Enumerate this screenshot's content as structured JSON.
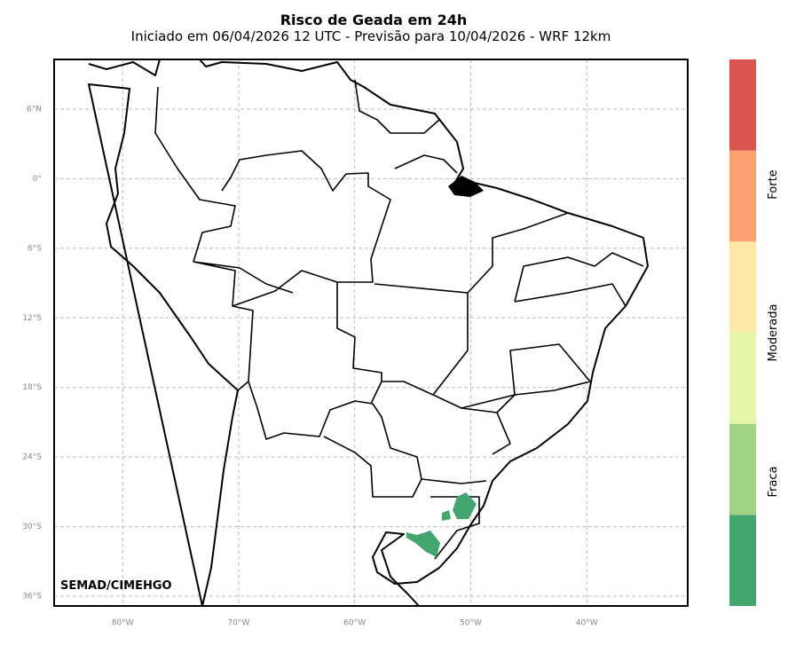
{
  "header": {
    "title": "Risco de Geada em 24h",
    "subtitle": "Iniciado em 06/04/2026 12 UTC - Previsão para 10/04/2026 - WRF 12km"
  },
  "map": {
    "xlim": [
      -85.9,
      -31.3
    ],
    "ylim": [
      -36.84,
      10.28
    ],
    "grid": true,
    "xticks": [
      {
        "value": -80,
        "label": "80°W"
      },
      {
        "value": -70,
        "label": "70°W"
      },
      {
        "value": -60,
        "label": "60°W"
      },
      {
        "value": -50,
        "label": "50°W"
      },
      {
        "value": -40,
        "label": "40°W"
      }
    ],
    "yticks": [
      {
        "value": 6,
        "label": "6°N"
      },
      {
        "value": 0,
        "label": "0°"
      },
      {
        "value": -6,
        "label": "6°S"
      },
      {
        "value": -12,
        "label": "12°S"
      },
      {
        "value": -18,
        "label": "18°S"
      },
      {
        "value": -24,
        "label": "24°S"
      },
      {
        "value": -30,
        "label": "30°S"
      },
      {
        "value": -36,
        "label": "36°S"
      }
    ],
    "credit": "SEMAD/CIMEHGO"
  },
  "colorbar": {
    "colors": [
      "#43a66f",
      "#9dd383",
      "#e5f5a9",
      "#fde8a7",
      "#fca172",
      "#d9534f"
    ],
    "labels": [
      "Fraca",
      "Moderada",
      "Forte"
    ]
  }
}
